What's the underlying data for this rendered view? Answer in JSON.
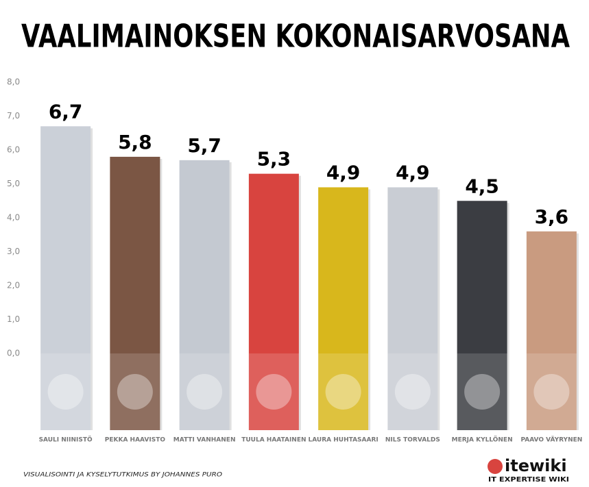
{
  "chart_data": {
    "type": "bar",
    "title": "VAALIMAINOKSEN KOKONAISARVOSANA",
    "categories": [
      "SAULI NIINISTÖ",
      "PEKKA HAAVISTO",
      "MATTI VANHANEN",
      "TUULA HAATAINEN",
      "LAURA HUHTASAARI",
      "NILS TORVALDS",
      "MERJA KYLLÖNEN",
      "PAAVO VÄYRYNEN"
    ],
    "values": [
      6.7,
      5.8,
      5.7,
      5.3,
      4.9,
      4.9,
      4.5,
      3.6
    ],
    "value_labels": [
      "6,7",
      "5,8",
      "5,7",
      "5,3",
      "4,9",
      "4,9",
      "4,5",
      "3,6"
    ],
    "colors": [
      "#cbd0d8",
      "#7b5644",
      "#c4c9d1",
      "#d8443f",
      "#d8b71c",
      "#c9cdd4",
      "#3b3d42",
      "#c99b80"
    ],
    "ylim": [
      0,
      8
    ],
    "yticks": [
      {
        "value": 0,
        "label": "0,0"
      },
      {
        "value": 1,
        "label": "1,0"
      },
      {
        "value": 2,
        "label": "2,0"
      },
      {
        "value": 3,
        "label": "3,0"
      },
      {
        "value": 4,
        "label": "4,0"
      },
      {
        "value": 5,
        "label": "5,0"
      },
      {
        "value": 6,
        "label": "6,0"
      },
      {
        "value": 7,
        "label": "7,0"
      },
      {
        "value": 8,
        "label": "8,0"
      }
    ],
    "credit": "VISUALISOINTI JA KYSELYTUTKIMUS BY JOHANNES PURO",
    "logo": "itewiki",
    "logo_tagline": "IT EXPERTISE WIKI"
  }
}
